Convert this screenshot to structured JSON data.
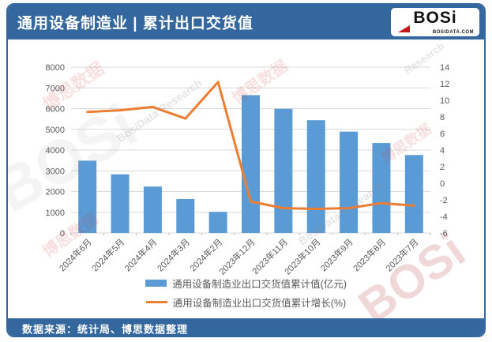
{
  "header": {
    "title": "通用设备制造业 | 累计出口交货值",
    "logo": {
      "name": "BOSi",
      "site": "BOSIDATA.COM"
    }
  },
  "footer": {
    "source": "数据来源：统计局、博思数据整理"
  },
  "colors": {
    "header_bg": "#33679d",
    "bar": "#5B9BD5",
    "line": "#ED7D31",
    "grid": "#D9D9D9",
    "axis_text": "#595959",
    "logo_accent": "#c41818"
  },
  "watermarks": [
    {
      "text": "博思数据",
      "class": "wm wm-red wm1"
    },
    {
      "text": "BosiData Research",
      "class": "wm wm-gray wm2"
    },
    {
      "text": "BOSi",
      "class": "wm wm-ghost wm3"
    },
    {
      "text": "博思数据",
      "class": "wm wm-red wm4"
    },
    {
      "text": "Research",
      "class": "wm wm-gray wm5"
    },
    {
      "text": "BosiData Research",
      "class": "wm wm-gray wm6"
    },
    {
      "text": "博思数据",
      "class": "wm wm-red wm7"
    },
    {
      "text": "BOSi",
      "class": "wm wm8"
    },
    {
      "text": "博思数据",
      "class": "wm wm-red wm9"
    }
  ],
  "chart_data": {
    "type": "bar",
    "subtype": "bar+line combo, dual axis",
    "categories": [
      "2024年6月",
      "2024年5月",
      "2024年4月",
      "2024年3月",
      "2024年2月",
      "2023年12月",
      "2023年11月",
      "2023年10月",
      "2023年9月",
      "2023年8月",
      "2023年7月"
    ],
    "series": [
      {
        "name": "通用设备制造业出口交货值累计值(亿元)",
        "type": "bar",
        "axis": "left",
        "color": "#5B9BD5",
        "values": [
          3490,
          2830,
          2240,
          1640,
          1020,
          6650,
          5990,
          5440,
          4890,
          4340,
          3760
        ]
      },
      {
        "name": "通用设备制造业出口交货值累计增长(%)",
        "type": "line",
        "axis": "right",
        "color": "#ED7D31",
        "values": [
          8.6,
          8.8,
          9.2,
          7.8,
          12.2,
          -2.2,
          -3.0,
          -3.1,
          -3.0,
          -2.4,
          -2.7
        ]
      }
    ],
    "left_axis": {
      "min": 0,
      "max": 8000,
      "step": 1000,
      "ticks": [
        "0",
        "1000",
        "2000",
        "3000",
        "4000",
        "5000",
        "6000",
        "7000",
        "8000"
      ]
    },
    "right_axis": {
      "min": -6,
      "max": 14,
      "step": 2,
      "ticks": [
        "-6",
        "-4",
        "-2",
        "0",
        "2",
        "4",
        "6",
        "8",
        "10",
        "12",
        "14"
      ]
    },
    "grid": true,
    "legend_position": "bottom"
  }
}
